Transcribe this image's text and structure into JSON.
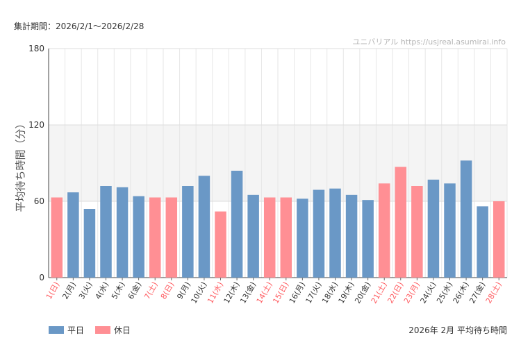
{
  "header": {
    "period": "集計期間：2026/2/1〜2026/2/28",
    "source": "ユニバリアル  https://usjreal.asumirai.info"
  },
  "colors": {
    "weekday": "#6a98c6",
    "holiday": "#ff8f94",
    "holiday_text": "#ff5a5f",
    "band": "#f4f4f4",
    "grid": "#e6e6e6"
  },
  "legend": [
    {
      "label": "平日",
      "key": "weekday"
    },
    {
      "label": "休日",
      "key": "holiday"
    }
  ],
  "footnote": "2026年 2月 平均待ち時間",
  "chart_data": {
    "type": "bar",
    "ylabel": "平均待ち時間（分）",
    "ylim": [
      0,
      180
    ],
    "yticks": [
      0,
      60,
      120,
      180
    ],
    "shaded_band": [
      60,
      120
    ],
    "categories": [
      "1(日)",
      "2(月)",
      "3(火)",
      "4(水)",
      "5(木)",
      "6(金)",
      "7(土)",
      "8(日)",
      "9(月)",
      "10(火)",
      "11(水)",
      "12(木)",
      "13(金)",
      "14(土)",
      "15(日)",
      "16(月)",
      "17(火)",
      "18(水)",
      "19(木)",
      "20(金)",
      "21(土)",
      "22(日)",
      "23(月)",
      "24(火)",
      "25(水)",
      "26(木)",
      "27(金)",
      "28(土)"
    ],
    "values": [
      63,
      67,
      54,
      72,
      71,
      64,
      63,
      63,
      72,
      80,
      52,
      84,
      65,
      63,
      63,
      62,
      69,
      70,
      65,
      61,
      74,
      87,
      72,
      77,
      74,
      92,
      56,
      60
    ],
    "day_type": [
      "holiday",
      "weekday",
      "weekday",
      "weekday",
      "weekday",
      "weekday",
      "holiday",
      "holiday",
      "weekday",
      "weekday",
      "holiday",
      "weekday",
      "weekday",
      "holiday",
      "holiday",
      "weekday",
      "weekday",
      "weekday",
      "weekday",
      "weekday",
      "holiday",
      "holiday",
      "holiday",
      "weekday",
      "weekday",
      "weekday",
      "weekday",
      "holiday"
    ]
  }
}
